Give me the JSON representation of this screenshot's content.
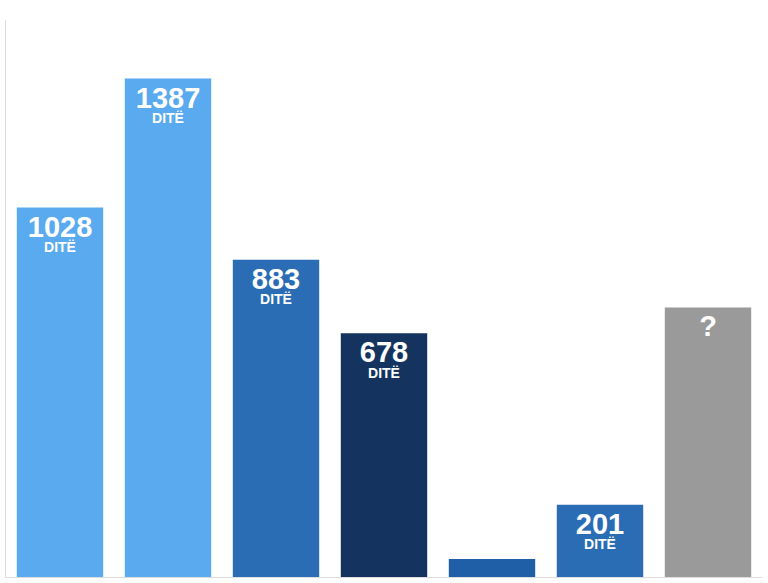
{
  "chart_data": {
    "type": "bar",
    "categories": [
      null,
      null,
      null,
      null,
      null,
      null,
      null
    ],
    "values": [
      1028,
      1387,
      883,
      678,
      50,
      201,
      750
    ],
    "value_labels": [
      "1028 DITË",
      "1387 DITË",
      "883 DITË",
      "678 DITË",
      null,
      "201 DITË",
      "?"
    ],
    "colors": [
      "#5aaaf0",
      "#5aaaf0",
      "#2a6db5",
      "#14345f",
      "#1f5fa8",
      "#2a6db5",
      "#9a9a9a"
    ],
    "ylim": [
      0,
      1550
    ],
    "yticks": [],
    "grid": false,
    "data_labels": true,
    "tick_labels": false
  }
}
